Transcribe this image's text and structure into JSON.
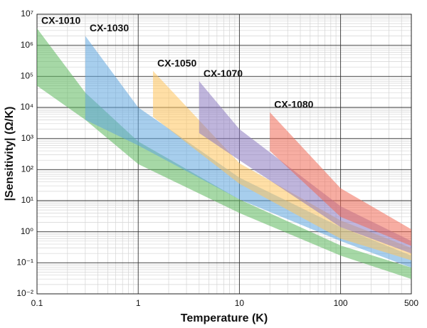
{
  "chart_data": {
    "type": "band",
    "x_label": "Temperature (K)",
    "y_label": "|Sensitivity| (Ω/K)",
    "x_log": true,
    "y_log": true,
    "grid": true,
    "xlim": [
      0.1,
      500
    ],
    "xticks": [
      0.1,
      1,
      10,
      100,
      500
    ],
    "ylim": [
      0.01,
      10000000
    ],
    "yticks": [
      {
        "value": 0.01,
        "label": "10⁻²"
      },
      {
        "value": 0.1,
        "label": "10⁻¹"
      },
      {
        "value": 1,
        "label": "10⁰"
      },
      {
        "value": 10,
        "label": "10¹"
      },
      {
        "value": 100,
        "label": "10²"
      },
      {
        "value": 1000,
        "label": "10³"
      },
      {
        "value": 10000,
        "label": "10⁴"
      },
      {
        "value": 100000,
        "label": "10⁵"
      },
      {
        "value": 1000000,
        "label": "10⁶"
      },
      {
        "value": 10000000,
        "label": "10⁷"
      }
    ],
    "series": [
      {
        "name": "CX-1010",
        "color": "#5cb85c",
        "label_color": "#6abf4b",
        "x": [
          0.1,
          0.3,
          1,
          10,
          100,
          500
        ],
        "upper": [
          3500000,
          30000,
          800,
          11,
          0.36,
          0.07
        ],
        "lower": [
          50000,
          4000,
          150,
          4,
          0.17,
          0.03
        ]
      },
      {
        "name": "CX-1030",
        "color": "#5ea6de",
        "label_color": "#3d8fd1",
        "x": [
          0.3,
          1,
          10,
          100,
          500
        ],
        "upper": [
          2000000,
          10000,
          55,
          1.4,
          0.17
        ],
        "lower": [
          4000,
          600,
          11,
          0.5,
          0.07
        ]
      },
      {
        "name": "CX-1050",
        "color": "#ffc45c",
        "label_color": "#e8b45a",
        "x": [
          1.4,
          10,
          100,
          500
        ],
        "upper": [
          150000,
          160,
          2.3,
          0.3
        ],
        "lower": [
          5000,
          35,
          0.6,
          0.12
        ]
      },
      {
        "name": "CX-1070",
        "color": "#8a78c0",
        "label_color": "#9a2fd0",
        "x": [
          4,
          10,
          100,
          500
        ],
        "upper": [
          70000,
          2000,
          6.6,
          0.5
        ],
        "lower": [
          1500,
          200,
          1.4,
          0.2
        ]
      },
      {
        "name": "CX-1080",
        "color": "#f06a55",
        "label_color": "#e62e25",
        "x": [
          20,
          100,
          500
        ],
        "upper": [
          7000,
          25,
          1.2
        ],
        "lower": [
          400,
          3,
          0.35
        ]
      }
    ]
  }
}
